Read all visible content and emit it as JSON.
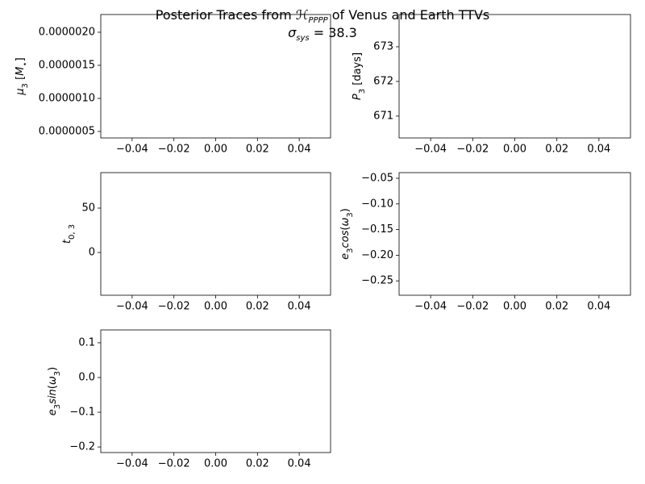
{
  "title": [
    {
      "text": "Posterior Traces from "
    },
    {
      "text": "ℋ",
      "italic": true
    },
    {
      "text": "PPPP",
      "sub": true,
      "italic": true
    },
    {
      "text": " of Venus and Earth TTVs"
    }
  ],
  "subtitle": [
    {
      "text": "σ",
      "italic": true
    },
    {
      "text": "sys",
      "sub": true,
      "italic": true
    },
    {
      "text": " = 38.3"
    }
  ],
  "chart_data": [
    {
      "type": "line",
      "ylabel": [
        {
          "text": "μ",
          "italic": true
        },
        {
          "text": "3",
          "sub": true
        },
        {
          "text": " ["
        },
        {
          "text": "M",
          "italic": true
        },
        {
          "text": "⋆",
          "sub": true
        },
        {
          "text": "]"
        }
      ],
      "xlim": [
        -0.055,
        0.055
      ],
      "xticks": [
        {
          "value": -0.04,
          "label": "−0.04"
        },
        {
          "value": -0.02,
          "label": "−0.02"
        },
        {
          "value": 0,
          "label": "0.00"
        },
        0.02,
        0.04
      ],
      "ylim": [
        4.02e-07,
        2.268e-06
      ],
      "yticks": [
        {
          "value": 5e-07,
          "label": "0.0000005"
        },
        {
          "value": 1e-06,
          "label": "0.0000010"
        },
        {
          "value": 1.5e-06,
          "label": "0.0000015"
        },
        {
          "value": 2e-06,
          "label": "0.0000020"
        }
      ]
    },
    {
      "type": "line",
      "ylabel": [
        {
          "text": "P",
          "italic": true
        },
        {
          "text": "3",
          "sub": true
        },
        {
          "text": " [days]"
        }
      ],
      "xlim": [
        -0.055,
        0.055
      ],
      "xticks": [
        {
          "value": -0.04,
          "label": "−0.04"
        },
        {
          "value": -0.02,
          "label": "−0.02"
        },
        {
          "value": 0,
          "label": "0.00"
        },
        0.02,
        0.04
      ],
      "ylim": [
        670.37,
        673.93
      ],
      "yticks": [
        671,
        672,
        673
      ]
    },
    {
      "type": "line",
      "ylabel": [
        {
          "text": "t",
          "italic": true
        },
        {
          "text": "0, 3",
          "sub": true
        }
      ],
      "xlim": [
        -0.055,
        0.055
      ],
      "xticks": [
        {
          "value": -0.04,
          "label": "−0.04"
        },
        {
          "value": -0.02,
          "label": "−0.02"
        },
        {
          "value": 0,
          "label": "0.00"
        },
        0.02,
        0.04
      ],
      "ylim": [
        -48.2,
        90
      ],
      "yticks": [
        0,
        50
      ]
    },
    {
      "type": "line",
      "ylabel": [
        {
          "text": "e",
          "italic": true
        },
        {
          "text": "3",
          "sub": true
        },
        {
          "text": "cos",
          "italic": true
        },
        {
          "text": "("
        },
        {
          "text": "ω",
          "italic": true
        },
        {
          "text": "3",
          "sub": true
        },
        {
          "text": ")"
        }
      ],
      "xlim": [
        -0.055,
        0.055
      ],
      "xticks": [
        {
          "value": -0.04,
          "label": "−0.04"
        },
        {
          "value": -0.02,
          "label": "−0.02"
        },
        {
          "value": 0,
          "label": "0.00"
        },
        0.02,
        0.04
      ],
      "ylim": [
        -0.278,
        -0.039
      ],
      "yticks": [
        {
          "value": -0.25,
          "label": "−0.25"
        },
        {
          "value": -0.2,
          "label": "−0.20"
        },
        {
          "value": -0.15,
          "label": "−0.15"
        },
        {
          "value": -0.1,
          "label": "−0.10"
        },
        {
          "value": -0.05,
          "label": "−0.05"
        }
      ]
    },
    {
      "type": "line",
      "ylabel": [
        {
          "text": "e",
          "italic": true
        },
        {
          "text": "3",
          "sub": true
        },
        {
          "text": "sin",
          "italic": true
        },
        {
          "text": "("
        },
        {
          "text": "ω",
          "italic": true
        },
        {
          "text": "3",
          "sub": true
        },
        {
          "text": ")"
        }
      ],
      "xlim": [
        -0.055,
        0.055
      ],
      "xticks": [
        {
          "value": -0.04,
          "label": "−0.04"
        },
        {
          "value": -0.02,
          "label": "−0.02"
        },
        {
          "value": 0,
          "label": "0.00"
        },
        0.02,
        0.04
      ],
      "ylim": [
        -0.216,
        0.137
      ],
      "yticks": [
        {
          "value": -0.2,
          "label": "−0.2"
        },
        {
          "value": -0.1,
          "label": "−0.1"
        },
        {
          "value": 0,
          "label": "0.0"
        },
        0.1
      ]
    }
  ]
}
